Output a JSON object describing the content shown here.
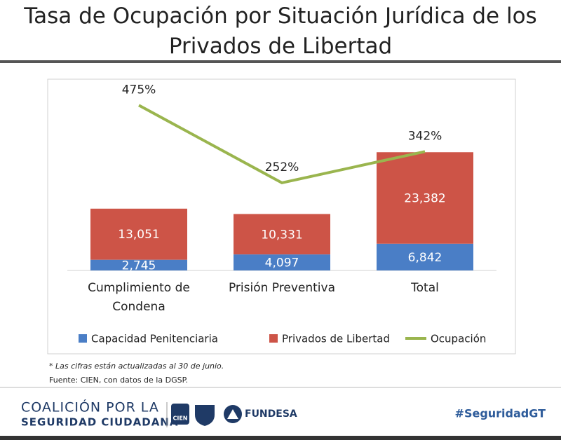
{
  "chart_data": {
    "type": "bar",
    "stacked": true,
    "title": "Tasa de Ocupación por Situación Jurídica de los Privados de Libertad",
    "categories": [
      "Cumplimiento de Condena",
      "Prisión Preventiva",
      "Total"
    ],
    "series": [
      {
        "name": "Capacidad Penitenciaria",
        "color": "#4a7ec6",
        "values": [
          2745,
          4097,
          6842
        ],
        "value_labels": [
          "2,745",
          "4,097",
          "6,842"
        ]
      },
      {
        "name": "Privados de Libertad",
        "color": "#cd5447",
        "values": [
          13051,
          10331,
          23382
        ],
        "value_labels": [
          "13,051",
          "10,331",
          "23,382"
        ]
      },
      {
        "name": "Ocupación",
        "type": "line",
        "axis": "y2",
        "color": "#9ab54e",
        "values": [
          475,
          252,
          342
        ],
        "value_labels": [
          "475%",
          "252%",
          "342%"
        ]
      }
    ],
    "ylim": [
      0,
      48000
    ],
    "y2lim": [
      0,
      540
    ],
    "legend": "bottom"
  },
  "notes": [
    "* Las cifras están actualizadas al 30 de junio.",
    "Fuente: CIEN, con datos de la DGSP."
  ],
  "footer": {
    "coalition_line1": "COALICIÓN POR LA",
    "coalition_line2": "SEGURIDAD CIUDADANA",
    "cien": "CIEN",
    "fundesa": "FUNDESA",
    "hashtag": "#SeguridadGT"
  }
}
